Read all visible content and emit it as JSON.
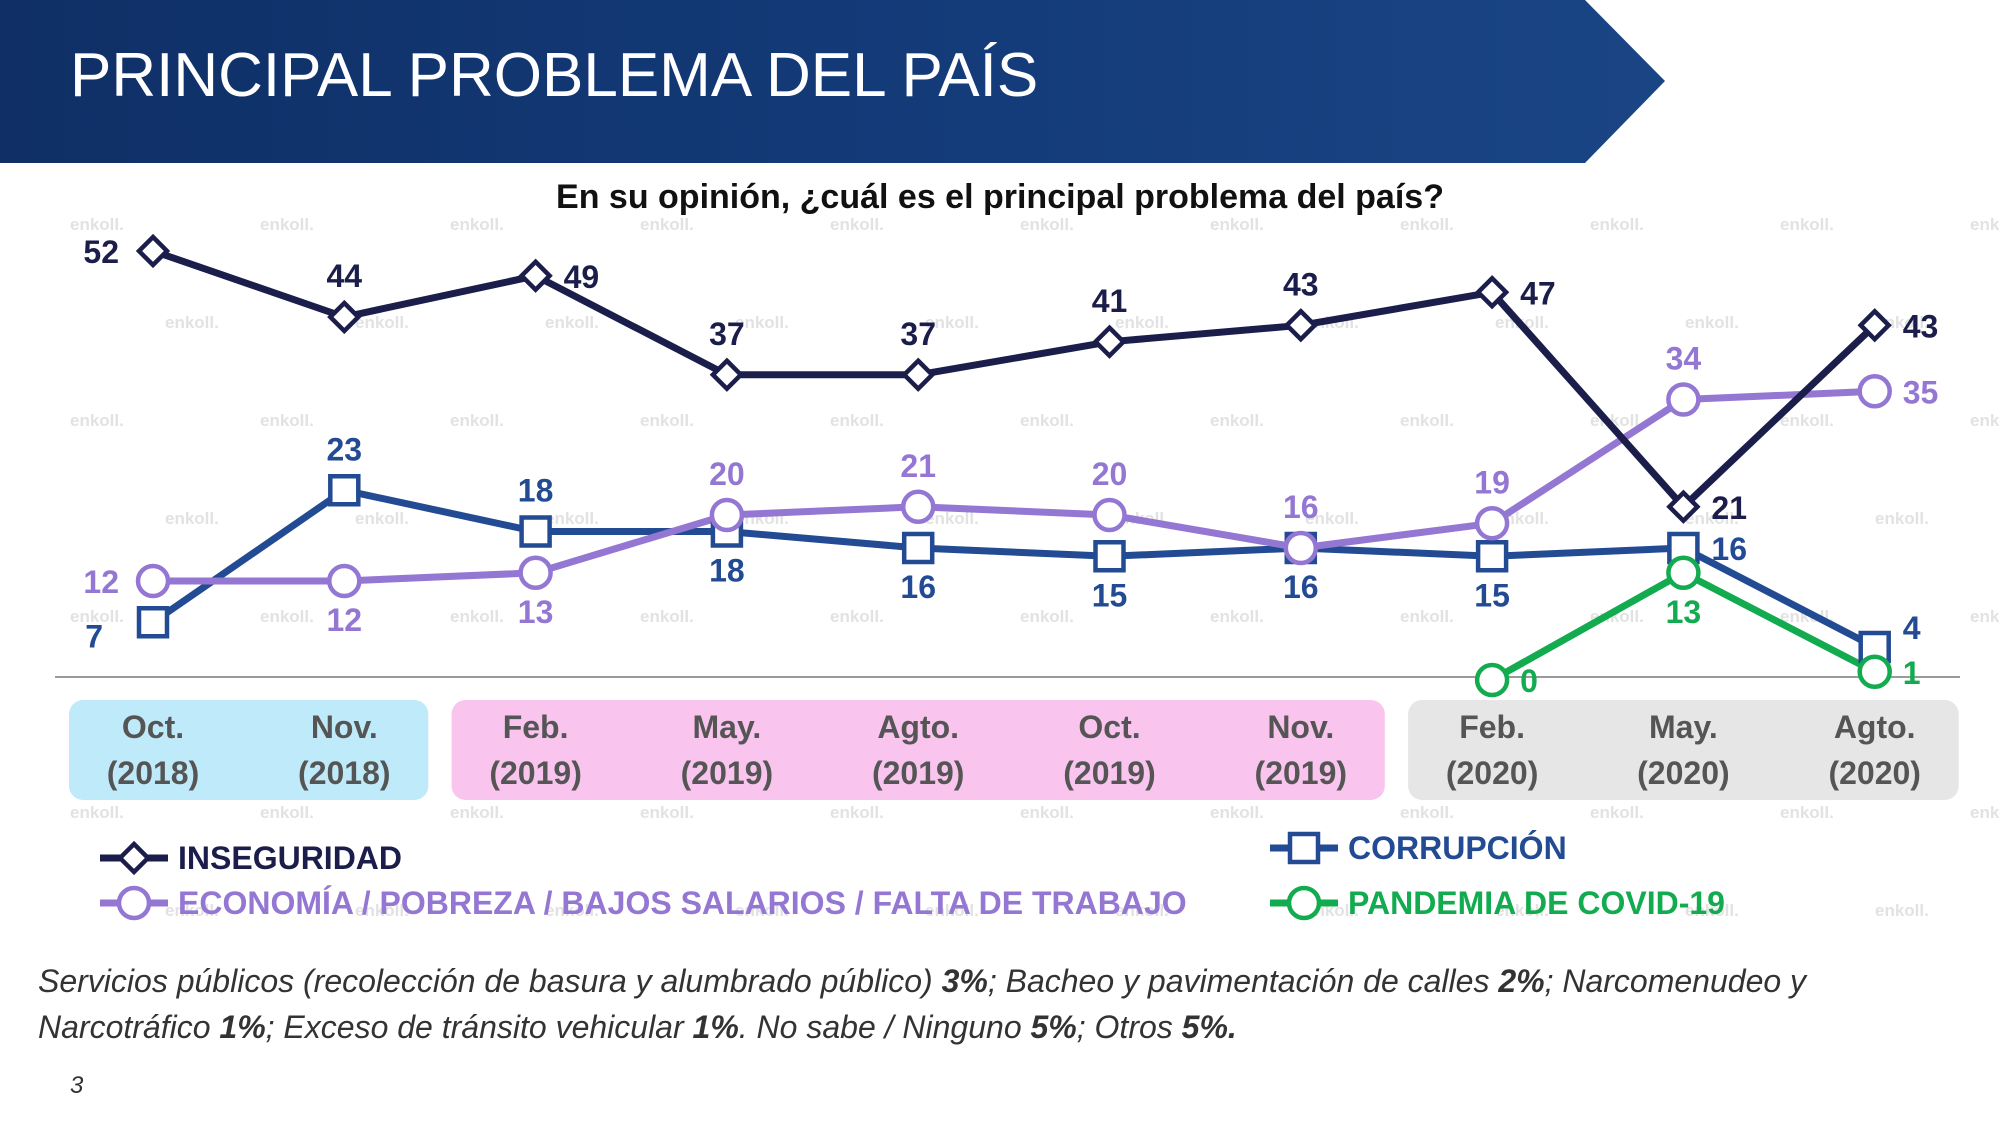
{
  "slide": {
    "title": "PRINCIPAL PROBLEMA DEL PAÍS",
    "question": "En su opinión, ¿cuál es el principal problema del país?",
    "page_number": "3",
    "watermark_text": "enkoll.",
    "footnote": [
      {
        "text": "Servicios públicos (recolección de basura y alumbrado público) ",
        "bold": false
      },
      {
        "text": "3%",
        "bold": true
      },
      {
        "text": "; Bacheo y pavimentación de calles ",
        "bold": false
      },
      {
        "text": "2%",
        "bold": true
      },
      {
        "text": "; Narcomenudeo y Narcotráfico ",
        "bold": false
      },
      {
        "text": "1%",
        "bold": true
      },
      {
        "text": "; Exceso de tránsito vehicular ",
        "bold": false
      },
      {
        "text": "1%",
        "bold": true
      },
      {
        "text": ". No sabe / Ninguno ",
        "bold": false
      },
      {
        "text": "5%",
        "bold": true
      },
      {
        "text": "; Otros ",
        "bold": false
      },
      {
        "text": "5%.",
        "bold": true
      }
    ]
  },
  "chart_data": {
    "type": "line",
    "ylim": [
      0,
      55
    ],
    "categories": [
      [
        "Oct.",
        "(2018)"
      ],
      [
        "Nov.",
        "(2018)"
      ],
      [
        "Feb.",
        "(2019)"
      ],
      [
        "May.",
        "(2019)"
      ],
      [
        "Agto.",
        "(2019)"
      ],
      [
        "Oct.",
        "(2019)"
      ],
      [
        "Nov.",
        "(2019)"
      ],
      [
        "Feb.",
        "(2020)"
      ],
      [
        "May.",
        "(2020)"
      ],
      [
        "Agto.",
        "(2020)"
      ]
    ],
    "year_groups": [
      {
        "start": 0,
        "end": 1,
        "color": "#bfeafa"
      },
      {
        "start": 2,
        "end": 6,
        "color": "#f9c4ee"
      },
      {
        "start": 7,
        "end": 9,
        "color": "#e6e6e6"
      }
    ],
    "series": [
      {
        "name": "INSEGURIDAD",
        "color": "#1b1d4a",
        "marker": "diamond",
        "values": [
          52,
          44,
          49,
          37,
          37,
          41,
          43,
          47,
          21,
          43
        ],
        "label_pos": [
          "l",
          "t",
          "r",
          "t",
          "t",
          "t",
          "t",
          "r",
          "r",
          "r"
        ]
      },
      {
        "name": "CORRUPCIÓN",
        "color": "#234b93",
        "marker": "square",
        "values": [
          7,
          23,
          18,
          18,
          16,
          15,
          16,
          15,
          16,
          4
        ],
        "label_pos": [
          "bl",
          "t",
          "t",
          "b",
          "b",
          "b",
          "b",
          "b",
          "r",
          "tr"
        ]
      },
      {
        "name": "ECONOMÍA / POBREZA / BAJOS SALARIOS / FALTA DE TRABAJO",
        "color": "#9476d3",
        "marker": "circle",
        "values": [
          12,
          12,
          13,
          20,
          21,
          20,
          16,
          19,
          34,
          35
        ],
        "label_pos": [
          "l",
          "b",
          "b",
          "t",
          "t",
          "t",
          "t",
          "t",
          "t",
          "r"
        ]
      },
      {
        "name": "PANDEMIA DE COVID-19",
        "color": "#13ab4f",
        "marker": "circle",
        "values": [
          null,
          null,
          null,
          null,
          null,
          null,
          null,
          0,
          13,
          1
        ],
        "label_pos": [
          null,
          null,
          null,
          null,
          null,
          null,
          null,
          "r",
          "b",
          "r"
        ]
      }
    ]
  }
}
